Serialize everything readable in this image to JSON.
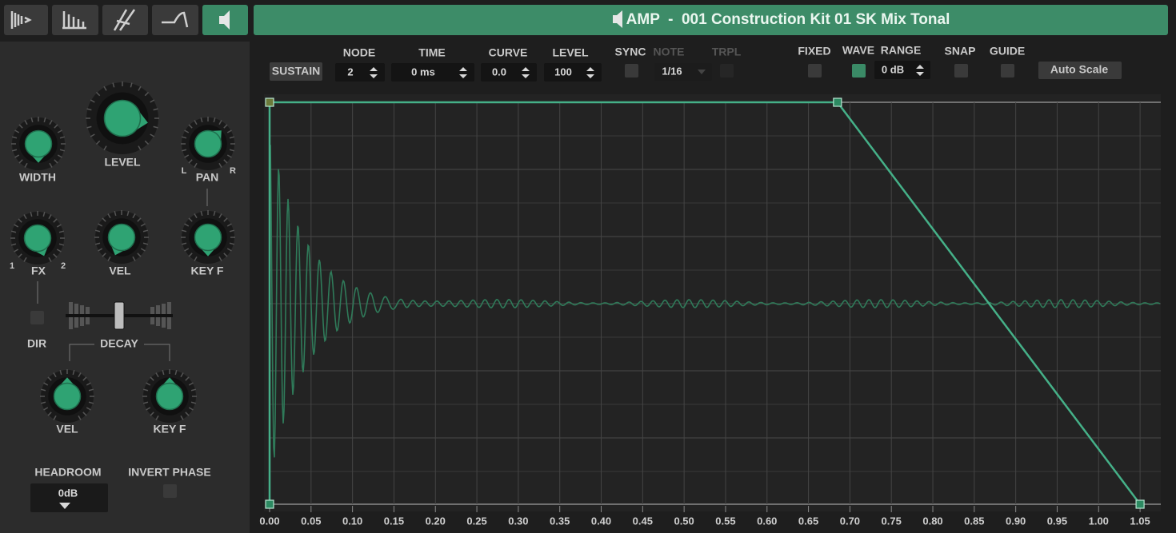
{
  "header": {
    "title": "AMP  -  001 Construction Kit 01 SK Mix Tonal"
  },
  "left_panel": {
    "width": "WIDTH",
    "level": "LEVEL",
    "pan": "PAN",
    "pan_left": "L",
    "pan_right": "R",
    "fx": "FX",
    "fx_min": "1",
    "fx_max": "2",
    "vel": "VEL",
    "key_f": "KEY F",
    "dir": "DIR",
    "decay": "DECAY",
    "decay_vel": "VEL",
    "decay_key_f": "KEY F",
    "headroom": "HEADROOM",
    "headroom_value": "0dB",
    "invert_phase": "INVERT PHASE"
  },
  "toolbar": {
    "sustain": "SUSTAIN",
    "node_label": "NODE",
    "node_value": "2",
    "time_label": "TIME",
    "time_value": "0 ms",
    "curve_label": "CURVE",
    "curve_value": "0.0",
    "level_label": "LEVEL",
    "level_value": "100",
    "sync": "SYNC",
    "note_label": "NOTE",
    "note_value": "1/16",
    "trpl": "TRPL",
    "fixed": "FIXED",
    "wave": "WAVE",
    "range_label": "RANGE",
    "range_value": "0 dB",
    "snap": "SNAP",
    "guide": "GUIDE",
    "auto_scale": "Auto Scale"
  },
  "graph": {
    "xlim": [
      0,
      1.075
    ],
    "ylim": [
      0,
      100
    ],
    "xticks": [
      {
        "value": 0,
        "label": "0.00"
      },
      {
        "value": 0.05,
        "label": "0.05"
      },
      {
        "value": 0.1,
        "label": "0.10"
      },
      {
        "value": 0.15,
        "label": "0.15"
      },
      {
        "value": 0.2,
        "label": "0.20"
      },
      {
        "value": 0.25,
        "label": "0.25"
      },
      {
        "value": 0.3,
        "label": "0.30"
      },
      {
        "value": 0.35,
        "label": "0.35"
      },
      {
        "value": 0.4,
        "label": "0.40"
      },
      {
        "value": 0.45,
        "label": "0.45"
      },
      {
        "value": 0.5,
        "label": "0.50"
      },
      {
        "value": 0.55,
        "label": "0.55"
      },
      {
        "value": 0.6,
        "label": "0.60"
      },
      {
        "value": 0.65,
        "label": "0.65"
      },
      {
        "value": 0.7,
        "label": "0.70"
      },
      {
        "value": 0.75,
        "label": "0.75"
      },
      {
        "value": 0.8,
        "label": "0.80"
      },
      {
        "value": 0.85,
        "label": "0.85"
      },
      {
        "value": 0.9,
        "label": "0.90"
      },
      {
        "value": 0.95,
        "label": "0.95"
      },
      {
        "value": 1.0,
        "label": "1.00"
      },
      {
        "value": 1.05,
        "label": "1.05"
      }
    ],
    "nodes": [
      {
        "time": 0,
        "level": 0
      },
      {
        "time": 0,
        "level": 100
      },
      {
        "time": 0.685,
        "level": 100
      },
      {
        "time": 1.05,
        "level": 0
      }
    ]
  }
}
